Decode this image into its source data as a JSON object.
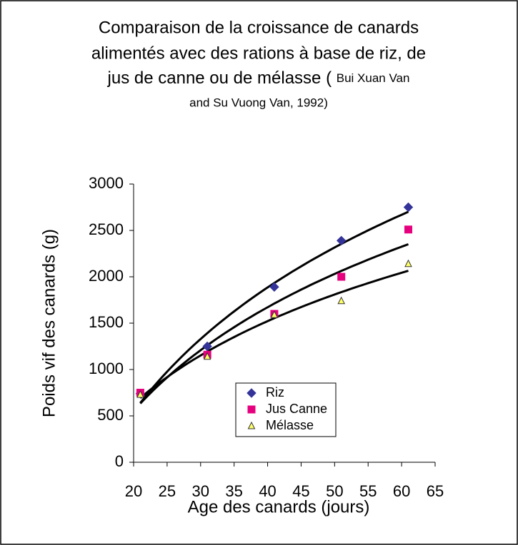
{
  "chart_data": {
    "type": "scatter",
    "title": [
      "Comparaison de la croissance de canards",
      "alimentés avec des rations à base de riz, de",
      "jus de canne ou de mélasse ("
    ],
    "title_source": [
      "Bui Xuan Van",
      "and Su Vuong Van, 1992)"
    ],
    "x_label": "Age des canards (jours)",
    "y_label": "Poids vif des canards (g)",
    "x": [
      21,
      31,
      41,
      51,
      61
    ],
    "series": [
      {
        "name": "Riz",
        "color": "#333399",
        "marker": "diamond",
        "values": [
          740,
          1250,
          1890,
          2390,
          2750
        ]
      },
      {
        "name": "Jus Canne",
        "color": "#e6007e",
        "marker": "square",
        "values": [
          750,
          1160,
          1600,
          2000,
          2510
        ]
      },
      {
        "name": "Mélasse",
        "color": "#ffff66",
        "marker": "triangle",
        "values": [
          730,
          1140,
          1590,
          1740,
          2140
        ]
      }
    ],
    "trendline": "log",
    "xlim": [
      20,
      65
    ],
    "xticks": [
      20,
      25,
      30,
      35,
      40,
      45,
      50,
      55,
      60,
      65
    ],
    "ylim": [
      0,
      3000
    ],
    "yticks": [
      0,
      500,
      1000,
      1500,
      2000,
      2500,
      3000
    ],
    "grid": false
  }
}
